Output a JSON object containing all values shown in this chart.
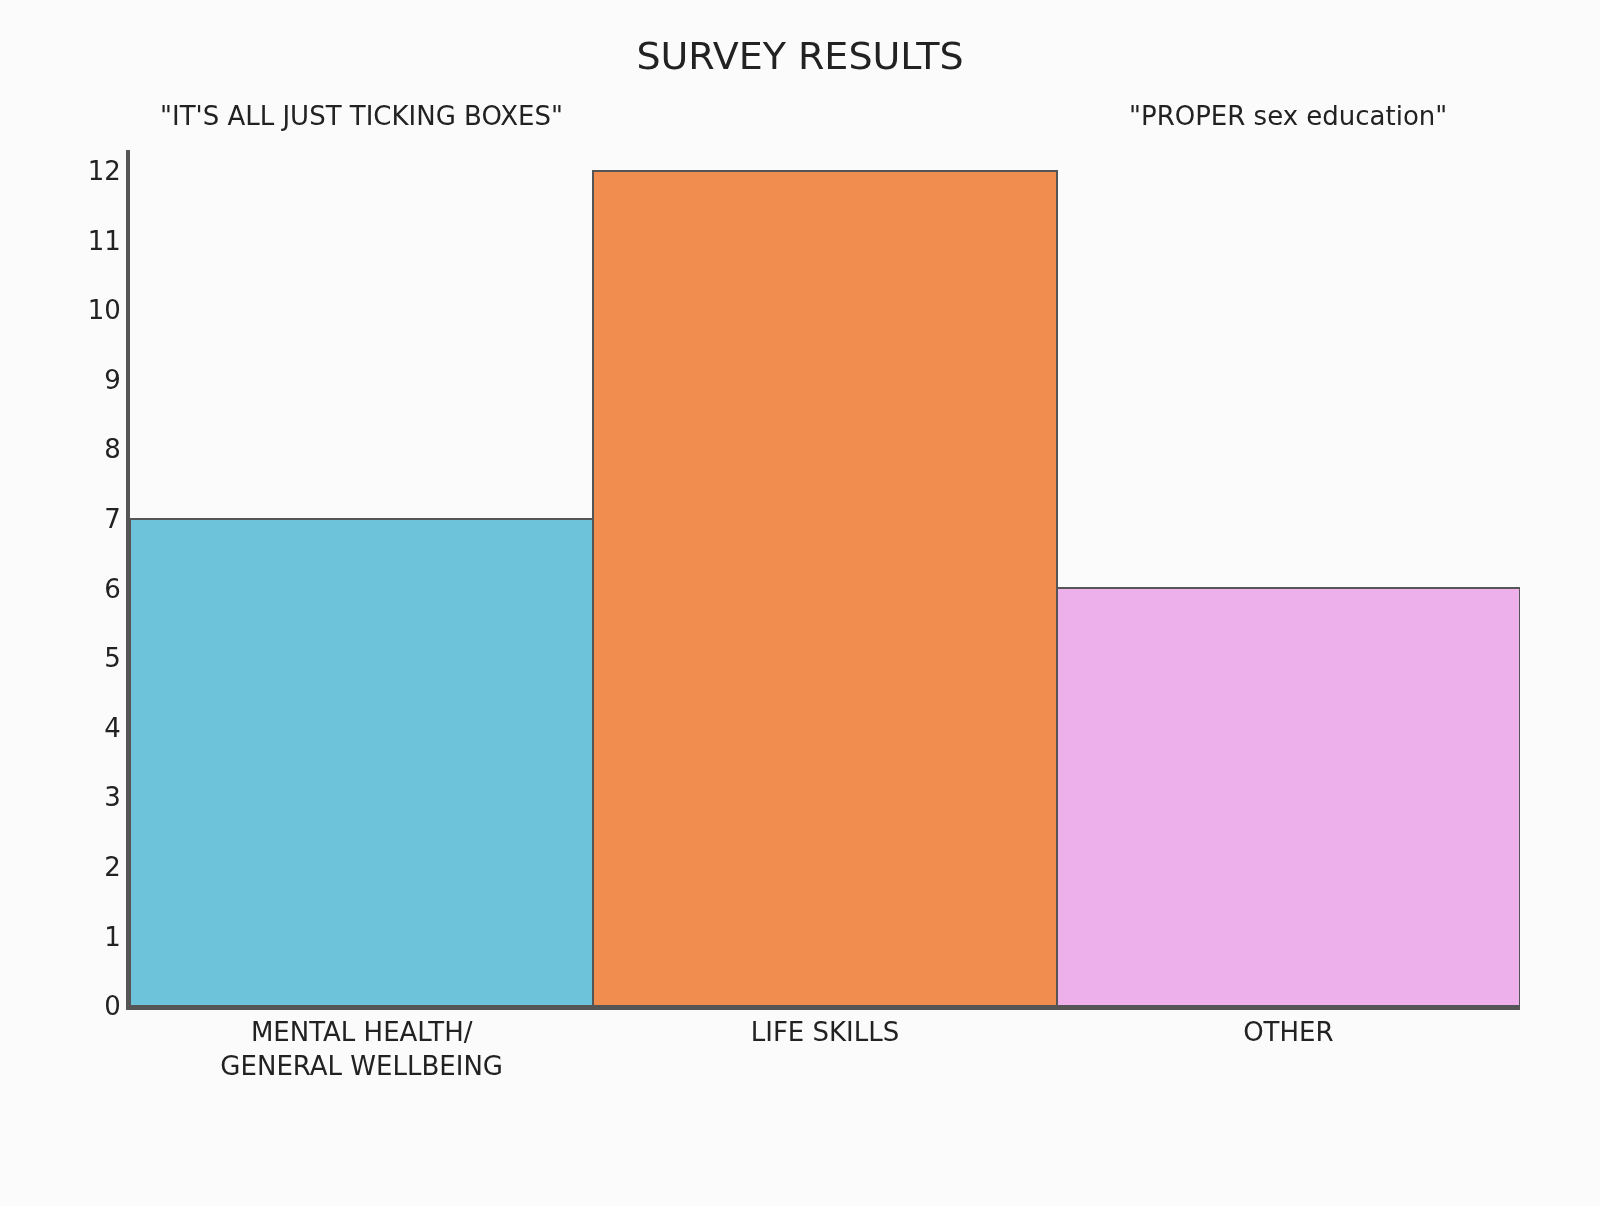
{
  "chart_data": {
    "type": "bar",
    "title": "SURVEY RESULTS",
    "categories": [
      "MENTAL HEALTH/\nGENERAL WELLBEING",
      "LIFE SKILLS",
      "OTHER"
    ],
    "values": [
      7,
      12,
      6
    ],
    "colors": [
      "#6cc3da",
      "#f28d50",
      "#eeb0ea"
    ],
    "ylim": [
      0,
      12.3
    ],
    "yticks": [
      0,
      1,
      2,
      3,
      4,
      5,
      6,
      7,
      8,
      9,
      10,
      11,
      12
    ],
    "annotations": [
      "\"IT'S ALL JUST TICKING BOXES\"",
      "\"PROPER sex education\""
    ]
  }
}
